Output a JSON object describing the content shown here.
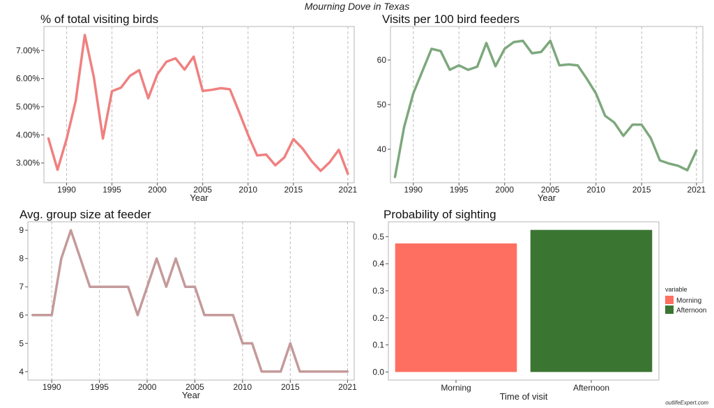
{
  "title": "Mourning Dove in Texas",
  "watermark": "outlifeExpert.com",
  "chart_data": [
    {
      "type": "line",
      "title": "% of total visiting birds",
      "xlabel": "Year",
      "ylabel": "",
      "x": [
        1988,
        1989,
        1990,
        1991,
        1992,
        1993,
        1994,
        1995,
        1996,
        1997,
        1998,
        1999,
        2000,
        2001,
        2002,
        2003,
        2004,
        2005,
        2006,
        2007,
        2008,
        2009,
        2010,
        2011,
        2012,
        2013,
        2014,
        2015,
        2016,
        2017,
        2018,
        2019,
        2020,
        2021
      ],
      "values": [
        3.87,
        2.76,
        3.85,
        5.2,
        7.55,
        6.05,
        3.87,
        5.55,
        5.68,
        6.1,
        6.3,
        5.3,
        6.15,
        6.6,
        6.72,
        6.32,
        6.78,
        5.56,
        5.6,
        5.66,
        5.62,
        4.82,
        4.0,
        3.27,
        3.3,
        2.92,
        3.2,
        3.85,
        3.52,
        3.07,
        2.72,
        3.03,
        3.47,
        2.62
      ],
      "color": "#F08080",
      "xlim": [
        1987.5,
        2021.7
      ],
      "ylim": [
        2.3,
        7.85
      ],
      "xticks": [
        1990,
        1995,
        2000,
        2005,
        2010,
        2015,
        2021
      ],
      "yticks": [
        3,
        4,
        5,
        6,
        7
      ],
      "ytick_labels": [
        "3.00%",
        "4.00%",
        "5.00%",
        "6.00%",
        "7.00%"
      ],
      "grid": "vertical-dashed"
    },
    {
      "type": "line",
      "title": "Visits per 100 bird feeders",
      "xlabel": "Year",
      "ylabel": "",
      "x": [
        1988,
        1989,
        1990,
        1991,
        1992,
        1993,
        1994,
        1995,
        1996,
        1997,
        1998,
        1999,
        2000,
        2001,
        2002,
        2003,
        2004,
        2005,
        2006,
        2007,
        2008,
        2009,
        2010,
        2011,
        2012,
        2013,
        2014,
        2015,
        2016,
        2017,
        2018,
        2019,
        2020,
        2021
      ],
      "values": [
        33.8,
        45.0,
        52.5,
        57.5,
        62.5,
        62.0,
        57.8,
        58.8,
        57.8,
        58.5,
        63.8,
        58.6,
        62.5,
        64.0,
        64.3,
        61.5,
        61.8,
        64.3,
        58.8,
        59.0,
        58.8,
        55.8,
        52.5,
        47.5,
        46.0,
        43.0,
        45.5,
        45.5,
        42.5,
        37.5,
        36.8,
        36.3,
        35.3,
        39.7
      ],
      "color": "#7DA87D",
      "xlim": [
        1987.5,
        2021.7
      ],
      "ylim": [
        32.5,
        67.5
      ],
      "xticks": [
        1990,
        1995,
        2000,
        2005,
        2010,
        2015,
        2021
      ],
      "yticks": [
        40,
        50,
        60
      ],
      "ytick_labels": [
        "40",
        "50",
        "60"
      ],
      "grid": "vertical-dashed"
    },
    {
      "type": "line",
      "title": "Avg. group size at feeder",
      "xlabel": "Year",
      "ylabel": "",
      "x": [
        1988,
        1989,
        1990,
        1991,
        1992,
        1993,
        1994,
        1995,
        1996,
        1997,
        1998,
        1999,
        2000,
        2001,
        2002,
        2003,
        2004,
        2005,
        2006,
        2007,
        2008,
        2009,
        2010,
        2011,
        2012,
        2013,
        2014,
        2015,
        2016,
        2017,
        2018,
        2019,
        2020,
        2021
      ],
      "values": [
        6,
        6,
        6,
        8,
        9,
        8,
        7,
        7,
        7,
        7,
        7,
        6,
        7,
        8,
        7,
        8,
        7,
        7,
        6,
        6,
        6,
        6,
        5,
        5,
        4,
        4,
        4,
        5,
        4,
        4,
        4,
        4,
        4,
        4
      ],
      "color": "#C49A9A",
      "xlim": [
        1987.5,
        2021.7
      ],
      "ylim": [
        3.7,
        9.3
      ],
      "xticks": [
        1990,
        1995,
        2000,
        2005,
        2010,
        2015,
        2021
      ],
      "yticks": [
        4,
        5,
        6,
        7,
        8,
        9
      ],
      "ytick_labels": [
        "4",
        "5",
        "6",
        "7",
        "8",
        "9"
      ],
      "grid": "vertical-dashed"
    },
    {
      "type": "bar",
      "title": "Probability of sighting",
      "xlabel": "Time of visit",
      "ylabel": "",
      "categories": [
        "Morning",
        "Afternoon"
      ],
      "values": [
        0.475,
        0.525
      ],
      "colors": [
        "#FF6F61",
        "#3B7532"
      ],
      "ylim": [
        -0.03,
        0.555
      ],
      "yticks": [
        0.0,
        0.1,
        0.2,
        0.3,
        0.4,
        0.5
      ],
      "ytick_labels": [
        "0.0",
        "0.1",
        "0.2",
        "0.3",
        "0.4",
        "0.5"
      ],
      "legend": {
        "title": "variable",
        "position": "right",
        "entries": [
          "Morning",
          "Afternoon"
        ]
      }
    }
  ]
}
